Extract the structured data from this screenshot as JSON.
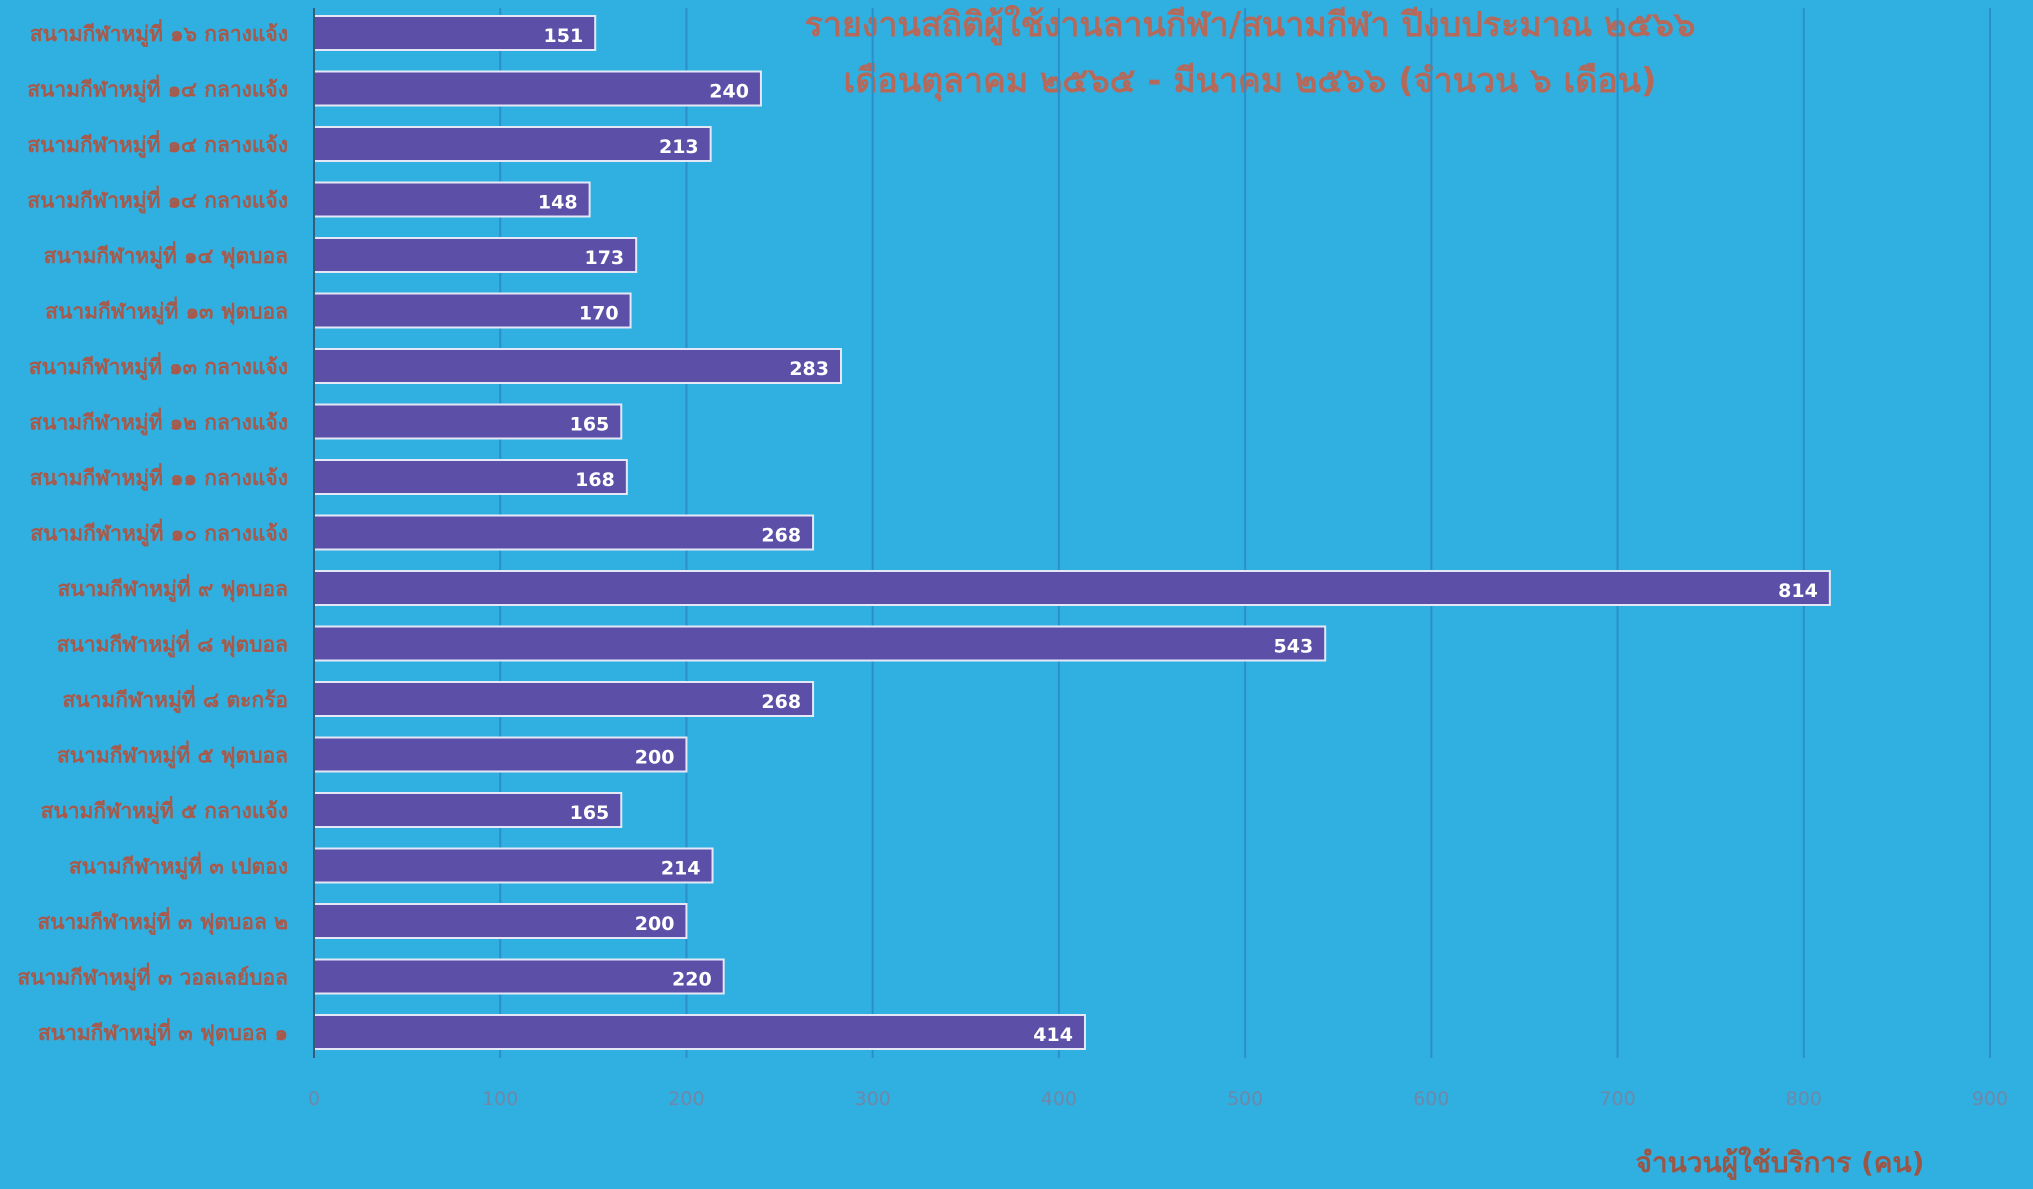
{
  "chart_data": {
    "type": "bar",
    "orientation": "horizontal",
    "title": "รายงานสถิติผู้ใช้งานลานกีฬา/สนามกีฬา ปีงบประมาณ ๒๕๖๖",
    "subtitle": "เดือนตุลาคม ๒๕๖๕ - มีนาคม ๒๕๖๖ (จำนวน ๖ เดือน)",
    "xlabel": "จำนวนผู้ใช้บริการ (คน)",
    "ylabel": "",
    "xlim": [
      0,
      900
    ],
    "xticks": [
      "0",
      "100",
      "200",
      "300",
      "400",
      "500",
      "600",
      "700",
      "800",
      "900"
    ],
    "grid": "vertical",
    "categories": [
      "สนามกีฬาหมู่ที่ ๑๖ กลางแจ้ง",
      "สนามกีฬาหมู่ที่ ๑๔ กลางแจ้ง",
      "สนามกีฬาหมู่ที่ ๑๔ กลางแจ้ง",
      "สนามกีฬาหมู่ที่ ๑๔ กลางแจ้ง",
      "สนามกีฬาหมู่ที่ ๑๔ ฟุตบอล",
      "สนามกีฬาหมู่ที่ ๑๓ ฟุตบอล",
      "สนามกีฬาหมู่ที่ ๑๓ กลางแจ้ง",
      "สนามกีฬาหมู่ที่ ๑๒ กลางแจ้ง",
      "สนามกีฬาหมู่ที่ ๑๑ กลางแจ้ง",
      "สนามกีฬาหมู่ที่ ๑๐ กลางแจ้ง",
      "สนามกีฬาหมู่ที่ ๙ ฟุตบอล",
      "สนามกีฬาหมู่ที่ ๘ ฟุตบอล",
      "สนามกีฬาหมู่ที่ ๘ ตะกร้อ",
      "สนามกีฬาหมู่ที่ ๕ ฟุตบอล",
      "สนามกีฬาหมู่ที่ ๕ กลางแจ้ง",
      "สนามกีฬาหมู่ที่ ๓ เปตอง",
      "สนามกีฬาหมู่ที่ ๓ ฟุตบอล ๒",
      "สนามกีฬาหมู่ที่ ๓ วอลเลย์บอล",
      "สนามกีฬาหมู่ที่ ๓ ฟุตบอล ๑"
    ],
    "values": [
      151,
      240,
      213,
      148,
      173,
      170,
      283,
      165,
      168,
      268,
      814,
      543,
      268,
      200,
      165,
      214,
      200,
      220,
      414
    ],
    "data_labels": [
      "151",
      "240",
      "213",
      "148",
      "173",
      "170",
      "283",
      "165",
      "168",
      "268",
      "814",
      "543",
      "268",
      "200",
      "165",
      "214",
      "200",
      "220",
      "414"
    ],
    "colors": {
      "background": "#2fb0e0",
      "bar": "#5b4fa8",
      "bar_border": "#e4e8f6",
      "gridline": "#2a8fca",
      "axis": "#3a5a78",
      "title": "#b5695a",
      "category_label": "#a8594a",
      "tick_label": "#6f87a8",
      "value_label": "#ffffff"
    }
  }
}
